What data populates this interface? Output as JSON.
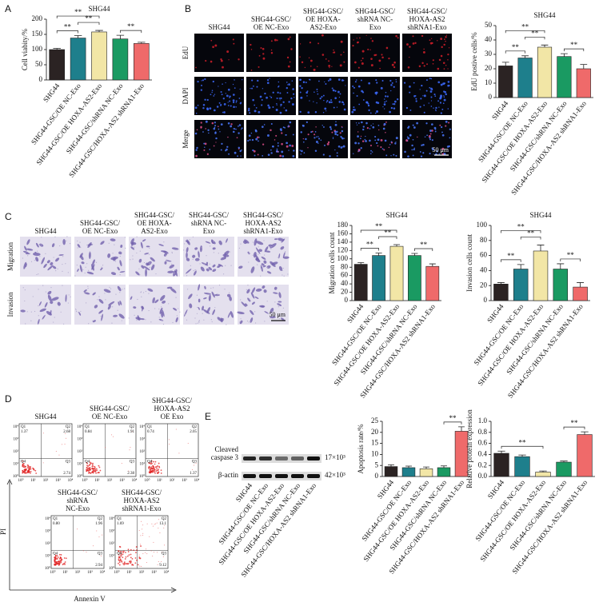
{
  "panel_labels": [
    "A",
    "B",
    "C",
    "D",
    "E"
  ],
  "chart_data": [
    {
      "type": "bar",
      "title": "SHG44",
      "y_label": "Cell viabity/%",
      "categories": [
        "SHG44",
        "SHG44-GSC/OE NC-Exo",
        "SHG44-GSC/OE HOXA-AS2-Exo",
        "SHG44-GSC/shRNA NC-Exo",
        "SHG44-GSC/HOXA-AS2 shRNA1-Exo"
      ],
      "values": [
        100,
        138,
        158,
        135,
        120
      ],
      "errors": [
        4,
        8,
        5,
        12,
        4
      ],
      "colors": [
        "#2b2323",
        "#1e7f8c",
        "#f2e6a6",
        "#1a9a62",
        "#ef6a6a"
      ],
      "ylim": [
        0,
        200
      ],
      "yticks": [
        0,
        50,
        100,
        150,
        200
      ],
      "annotations": [
        {
          "text": "**",
          "from": 0,
          "to": 2
        },
        {
          "text": "**",
          "from": 0,
          "to": 1
        },
        {
          "text": "**",
          "from": 1,
          "to": 2
        },
        {
          "text": "**",
          "from": 3,
          "to": 4
        }
      ]
    },
    {
      "type": "bar",
      "title": "SHG44",
      "y_label": "EdU postive cells/%",
      "categories": [
        "SHG44",
        "SHG44-GSC/OE NC-Exo",
        "SHG44-GSC/OE HOXA-AS2-Exo",
        "SHG44-GSC/shRNA NC-Exo",
        "SHG44-GSC/HOXA-AS2 shRNA1-Exo"
      ],
      "values": [
        22,
        27.5,
        35,
        28.5,
        20
      ],
      "errors": [
        2.5,
        1.5,
        1.5,
        2,
        3
      ],
      "colors": [
        "#2b2323",
        "#1e7f8c",
        "#f2e6a6",
        "#1a9a62",
        "#ef6a6a"
      ],
      "ylim": [
        0,
        50
      ],
      "yticks": [
        0,
        10,
        20,
        30,
        40,
        50
      ],
      "annotations": [
        {
          "text": "**",
          "from": 0,
          "to": 2
        },
        {
          "text": "**",
          "from": 0,
          "to": 1
        },
        {
          "text": "**",
          "from": 1,
          "to": 2
        },
        {
          "text": "**",
          "from": 3,
          "to": 4
        }
      ]
    },
    {
      "type": "bar",
      "title": "SHG44",
      "y_label": "Migration cells count",
      "categories": [
        "SHG44",
        "SHG44-GSC/OE NC-Exo",
        "SHG44-GSC/OE HOXA-AS2-Exo",
        "SHG44-GSC/shRNA NC-Exo",
        "SHG44-GSC/HOXA-AS2 shRNA1-Exo"
      ],
      "values": [
        87,
        108,
        130,
        108,
        82
      ],
      "errors": [
        4,
        6,
        4,
        5,
        6
      ],
      "colors": [
        "#2b2323",
        "#1e7f8c",
        "#f2e6a6",
        "#1a9a62",
        "#ef6a6a"
      ],
      "ylim": [
        0,
        180
      ],
      "yticks": [
        0,
        20,
        40,
        60,
        80,
        100,
        120,
        140,
        160,
        180
      ],
      "annotations": [
        {
          "text": "**",
          "from": 0,
          "to": 2
        },
        {
          "text": "**",
          "from": 0,
          "to": 1
        },
        {
          "text": "**",
          "from": 1,
          "to": 2
        },
        {
          "text": "**",
          "from": 3,
          "to": 4
        }
      ]
    },
    {
      "type": "bar",
      "title": "SHG44",
      "y_label": "Invasion cells count",
      "categories": [
        "SHG44",
        "SHG44-GSC/OE NC-Exo",
        "SHG44-GSC/OE HOXA-AS2-Exo",
        "SHG44-GSC/shRNA NC-Exo",
        "SHG44-GSC/HOXA-AS2 shRNA1-Exo"
      ],
      "values": [
        22,
        42,
        66,
        42,
        18
      ],
      "errors": [
        2,
        6,
        8,
        7,
        6
      ],
      "colors": [
        "#2b2323",
        "#1e7f8c",
        "#f2e6a6",
        "#1a9a62",
        "#ef6a6a"
      ],
      "ylim": [
        0,
        100
      ],
      "yticks": [
        0,
        20,
        40,
        60,
        80,
        100
      ],
      "annotations": [
        {
          "text": "**",
          "from": 0,
          "to": 2
        },
        {
          "text": "**",
          "from": 0,
          "to": 1
        },
        {
          "text": "**",
          "from": 1,
          "to": 2
        },
        {
          "text": "**",
          "from": 3,
          "to": 4
        }
      ]
    },
    {
      "type": "bar",
      "y_label": "Apoptosis rate/%",
      "categories": [
        "SHG44",
        "SHG44-GSC/OE NC-Exo",
        "SHG44-GSC/OE HOXA-AS2-Exo",
        "SHG44-GSC/shRNA NC-Exo",
        "SHG44-GSC/HOXA-AS2 shRNA1-Exo"
      ],
      "values": [
        4.5,
        4,
        3.5,
        4,
        20.5
      ],
      "errors": [
        0.8,
        0.7,
        0.8,
        0.8,
        2
      ],
      "colors": [
        "#2b2323",
        "#1e7f8c",
        "#f2e6a6",
        "#1a9a62",
        "#ef6a6a"
      ],
      "ylim": [
        0,
        25
      ],
      "yticks": [
        0,
        5,
        10,
        15,
        20,
        25
      ],
      "annotations": [
        {
          "text": "**",
          "from": 3,
          "to": 4
        }
      ]
    },
    {
      "type": "bar",
      "y_label": "Relative protein expression",
      "categories": [
        "SHG44",
        "SHG44-GSC/OE NC-Exo",
        "SHG44-GSC/OE HOXA-AS2-Exo",
        "SHG44-GSC/shRNA NC-Exo",
        "SHG44-GSC/HOXA-AS2 shRNA1-Exo"
      ],
      "values": [
        0.42,
        0.36,
        0.08,
        0.26,
        0.76
      ],
      "errors": [
        0.04,
        0.03,
        0.02,
        0.02,
        0.05
      ],
      "colors": [
        "#2b2323",
        "#1e7f8c",
        "#f2e6a6",
        "#1a9a62",
        "#ef6a6a"
      ],
      "ylim": [
        0,
        1
      ],
      "yticks": [
        {
          "value": 0,
          "label": "0.0"
        },
        0.2,
        0.4,
        0.6,
        0.8,
        {
          "value": 1,
          "label": "1.0"
        }
      ],
      "annotations": [
        {
          "text": "**",
          "from": 0,
          "to": 2
        },
        {
          "text": "**",
          "from": 3,
          "to": 4
        }
      ]
    }
  ],
  "edu_panel": {
    "columns": [
      [
        "SHG44"
      ],
      [
        "SHG44-GSC/",
        "OE NC-Exo"
      ],
      [
        "SHG44-GSC/",
        "OE HOXA-",
        "AS2-Exo"
      ],
      [
        "SHG44-GSC/",
        "shRNA NC-",
        "Exo"
      ],
      [
        "SHG44-GSC/",
        "HOXA-AS2",
        "shRNA1-Exo"
      ]
    ],
    "rows": [
      "EdU",
      "DAPI",
      "Merge"
    ],
    "scale_bar": "50 μm"
  },
  "transwell_panel": {
    "columns": [
      [
        "SHG44"
      ],
      [
        "SHG44-GSC/",
        "OE NC-Exo"
      ],
      [
        "SHG44-GSC/",
        "OE HOXA-",
        "AS2-Exo"
      ],
      [
        "SHG44-GSC/",
        "shRNA NC-",
        "Exo"
      ],
      [
        "SHG44-GSC/",
        "HOXA-AS2",
        "shRNA1-Exo"
      ]
    ],
    "rows": [
      "Migration",
      "Invasion"
    ],
    "scale_bar": "50 μm"
  },
  "flow_panel": {
    "x_axis": "Annexin V",
    "y_axis": "PI",
    "quadrants": [
      "Q1",
      "Q2",
      "Q3",
      "Q4"
    ],
    "decades": [
      "10⁰",
      "10¹",
      "10²",
      "10³",
      "10⁴"
    ],
    "plots": [
      {
        "title": [
          "SHG44"
        ],
        "q1": "1.37",
        "q2": "2.68",
        "q3": "2.74"
      },
      {
        "title": [
          "SHG44-GSC/",
          "OE NC-Exo"
        ],
        "q1": "0.84",
        "q2": "1.91",
        "q3": "2.38"
      },
      {
        "title": [
          "SHG44-GSC/",
          "HOXA-AS2",
          "OE Exo"
        ],
        "q1": "0.74",
        "q2": "2.05",
        "q3": "1.37"
      },
      {
        "title": [
          "SHG44-GSC/",
          "shRNA",
          "NC-Exo"
        ],
        "q1": "0.80",
        "q2": "1.96",
        "q3": "2.94"
      },
      {
        "title": [
          "SHG44-GSC/",
          "HOXA-AS2",
          "shRNA1-Exo"
        ],
        "q1": "1.69",
        "q2": "13.1",
        "q3": "9.12"
      }
    ]
  },
  "blot_panel": {
    "rows": [
      {
        "label": [
          "Cleaved",
          "caspase 3"
        ],
        "size": "17×10³"
      },
      {
        "label": [
          "β-actin"
        ],
        "size": "42×10³"
      }
    ],
    "lanes": [
      "SHG44",
      "SHG44-GSC/OE NC-Exo",
      "SHG44-GSC/OE HOXA-AS2-Exo",
      "SHG44-GSC/shRNA NC-Exo",
      "SHG44-GSC/HOXA-AS2 shRNA1-Exo"
    ]
  }
}
